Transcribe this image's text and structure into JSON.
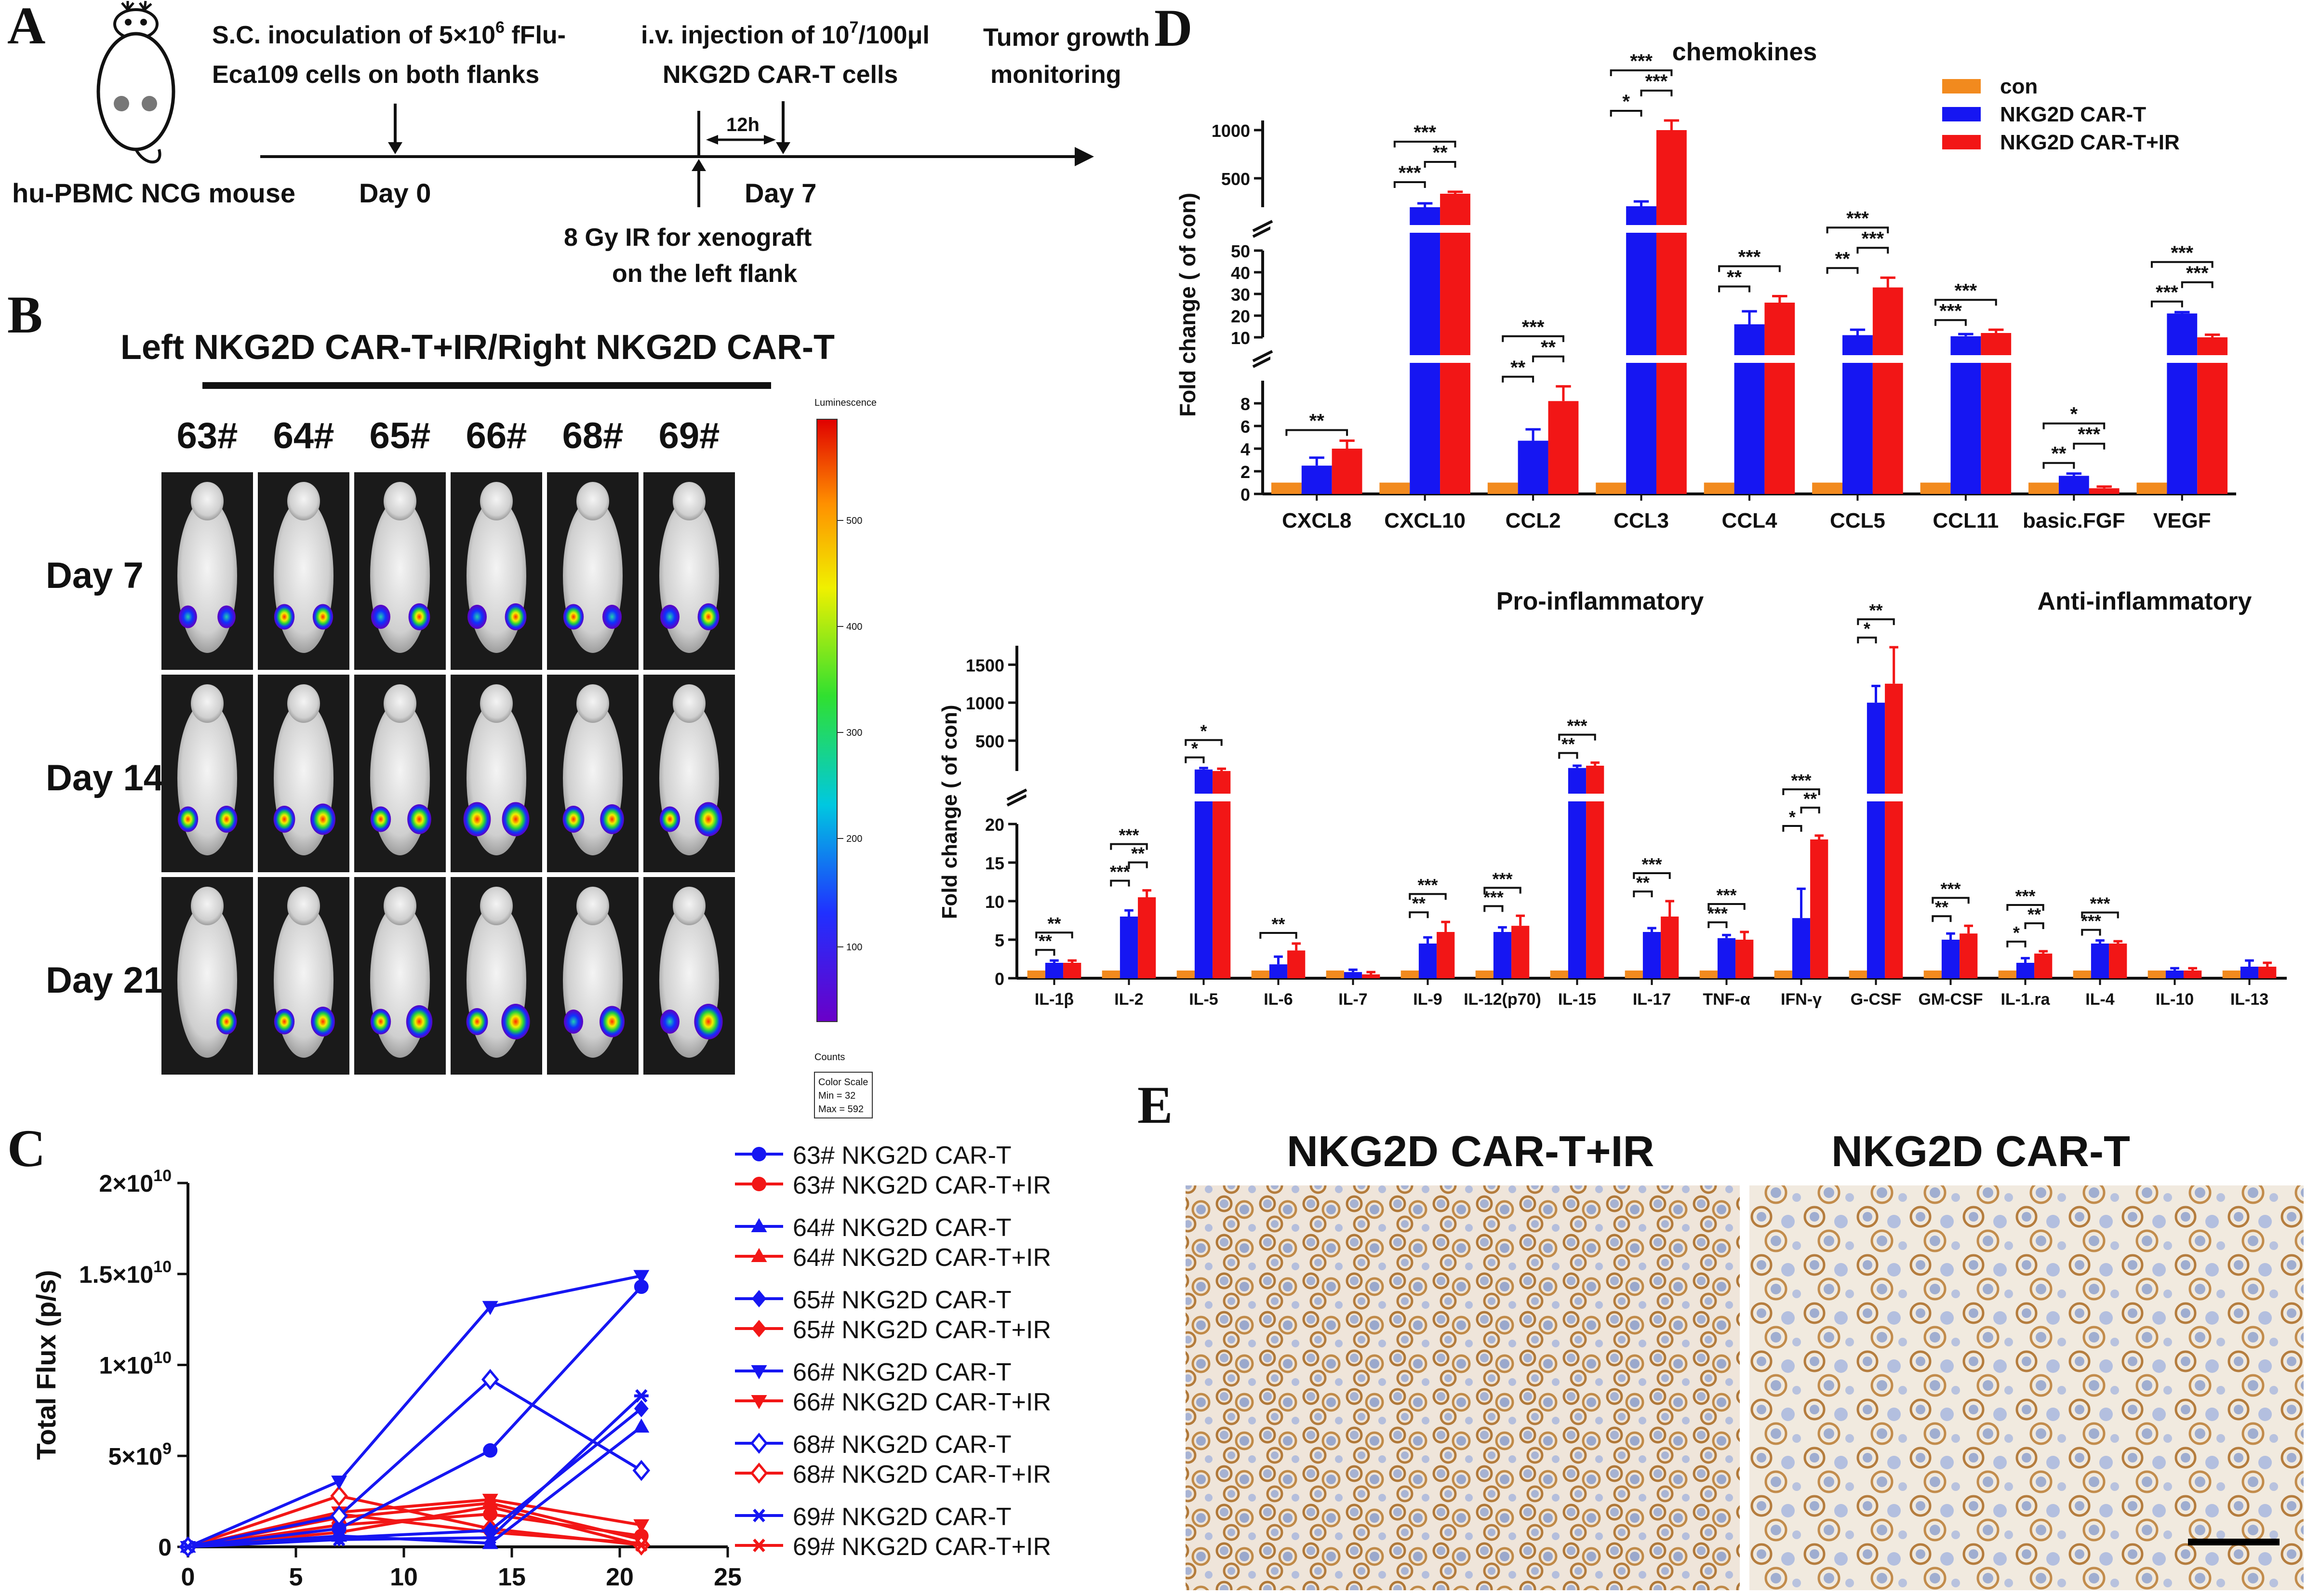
{
  "colors": {
    "con": "#F28A1E",
    "car": "#1616F2",
    "carir": "#F21616",
    "black": "#111111"
  },
  "panelA": {
    "letter": "A",
    "mouse": "hu-PBMC NCG mouse",
    "step1_line1": "S.C. inoculation of 5×10",
    "step1_sup": "6",
    "step1_line1_end": " fFlu-",
    "step1_line2": "Eca109 cells on both flanks",
    "step2_line1": "i.v. injection of 10",
    "step2_sup": "7",
    "step2_line1_end": "/100μl",
    "step2_line2": "NKG2D CAR-T cells",
    "step3_line1": "Tumor growth",
    "step3_line2": "monitoring",
    "day0": "Day 0",
    "day7": "Day 7",
    "interval": "12h",
    "ir_line1": "8 Gy IR for xenograft",
    "ir_line2": "on the left flank"
  },
  "panelB": {
    "letter": "B",
    "title": "Left NKG2D CAR-T+IR/Right NKG2D CAR-T",
    "mice": [
      "63#",
      "64#",
      "65#",
      "66#",
      "68#",
      "69#"
    ],
    "days": [
      "Day 7",
      "Day 14",
      "Day 21"
    ],
    "colorbar_title": "Luminescence",
    "colorbar_ticks": [
      "500",
      "400",
      "300",
      "200",
      "100"
    ],
    "colorbar_units": "Counts",
    "color_scale": [
      "Color Scale",
      "Min = 32",
      "Max = 592"
    ]
  },
  "panelE": {
    "letter": "E",
    "label_left": "NKG2D CAR-T+IR",
    "label_right": "NKG2D CAR-T"
  },
  "chart_data": [
    {
      "id": "C",
      "letter": "C",
      "type": "line",
      "ylabel": "Total Flux (p/s)",
      "xlim": [
        0,
        25
      ],
      "ylim": [
        0,
        20000000000.0
      ],
      "x_ticks": [
        "0",
        "5",
        "10",
        "15",
        "20",
        "25"
      ],
      "y_ticks": [
        {
          "base": "0",
          "exp": ""
        },
        {
          "base": "5×10",
          "exp": "9"
        },
        {
          "base": "1×10",
          "exp": "10"
        },
        {
          "base": "1.5×10",
          "exp": "10"
        },
        {
          "base": "2×10",
          "exp": "10"
        }
      ],
      "x": [
        0,
        7,
        14,
        21
      ],
      "series": [
        {
          "name": "63# NKG2D CAR-T",
          "group": "car",
          "marker": "circle",
          "values": [
            0,
            1000000000.0,
            5300000000.0,
            14300000000.0
          ]
        },
        {
          "name": "63# NKG2D CAR-T+IR",
          "group": "carir",
          "marker": "circle",
          "values": [
            0,
            1200000000.0,
            1800000000.0,
            600000000.0
          ]
        },
        {
          "name": "64# NKG2D CAR-T",
          "group": "car",
          "marker": "triangle-up",
          "values": [
            0,
            600000000.0,
            200000000.0,
            6600000000.0
          ]
        },
        {
          "name": "64# NKG2D CAR-T+IR",
          "group": "carir",
          "marker": "triangle-up",
          "values": [
            0,
            1600000000.0,
            2400000000.0,
            400000000.0
          ]
        },
        {
          "name": "65# NKG2D CAR-T",
          "group": "car",
          "marker": "diamond",
          "values": [
            0,
            500000000.0,
            900000000.0,
            7600000000.0
          ]
        },
        {
          "name": "65# NKG2D CAR-T+IR",
          "group": "carir",
          "marker": "diamond",
          "values": [
            0,
            1800000000.0,
            800000000.0,
            200000000.0
          ]
        },
        {
          "name": "66# NKG2D CAR-T",
          "group": "car",
          "marker": "triangle-down",
          "values": [
            0,
            3600000000.0,
            13200000000.0,
            14900000000.0
          ]
        },
        {
          "name": "66# NKG2D CAR-T+IR",
          "group": "carir",
          "marker": "triangle-down",
          "values": [
            0,
            1900000000.0,
            2600000000.0,
            1200000000.0
          ]
        },
        {
          "name": "68# NKG2D CAR-T",
          "group": "car",
          "marker": "diamond-open",
          "values": [
            0,
            1700000000.0,
            9200000000.0,
            4200000000.0
          ]
        },
        {
          "name": "68# NKG2D CAR-T+IR",
          "group": "carir",
          "marker": "diamond-open",
          "values": [
            0,
            2800000000.0,
            1000000000.0,
            100000000.0
          ]
        },
        {
          "name": "69# NKG2D CAR-T",
          "group": "car",
          "marker": "star",
          "values": [
            0,
            400000000.0,
            500000000.0,
            8300000000.0
          ]
        },
        {
          "name": "69# NKG2D CAR-T+IR",
          "group": "carir",
          "marker": "star",
          "values": [
            0,
            800000000.0,
            2200000000.0,
            100000000.0
          ]
        }
      ]
    },
    {
      "id": "D1",
      "letter": "D",
      "type": "bar",
      "title": "chemokines",
      "ylabel": "Fold change ( of con)",
      "legend": [
        "con",
        "NKG2D CAR-T",
        "NKG2D CAR-T+IR"
      ],
      "categories": [
        "CXCL8",
        "CXCL10",
        "CCL2",
        "CCL3",
        "CCL4",
        "CCL5",
        "CCL11",
        "basic.FGF",
        "VEGF"
      ],
      "series": [
        {
          "name": "con",
          "values": [
            1,
            1,
            1,
            1,
            1,
            1,
            1,
            1,
            1
          ]
        },
        {
          "name": "NKG2D CAR-T",
          "values": [
            2.5,
            200,
            4.7,
            210,
            16,
            11,
            10.5,
            1.6,
            21
          ]
        },
        {
          "name": "NKG2D CAR-T+IR",
          "values": [
            4.0,
            340,
            8.2,
            1000,
            26,
            33,
            12,
            0.5,
            10
          ]
        }
      ],
      "errors": [
        {
          "name": "NKG2D CAR-T",
          "values": [
            0.7,
            40,
            1.0,
            50,
            6,
            2.5,
            1.0,
            0.2,
            0.6
          ]
        },
        {
          "name": "NKG2D CAR-T+IR",
          "values": [
            0.7,
            20,
            1.3,
            130,
            3,
            4.5,
            1.5,
            0.15,
            1.2
          ]
        }
      ],
      "segments": [
        {
          "range": [
            0,
            10
          ],
          "ticks": [
            0,
            2,
            4,
            6,
            8,
            10
          ]
        },
        {
          "range": [
            10,
            50
          ],
          "ticks": [
            10,
            20,
            30,
            40,
            50
          ]
        },
        {
          "range": [
            200,
            1100
          ],
          "ticks": [
            500,
            1000
          ]
        }
      ],
      "significance": [
        {
          "cat": 0,
          "pair": "con-carir",
          "label": "**"
        },
        {
          "cat": 1,
          "pair": "con-car",
          "label": "***"
        },
        {
          "cat": 1,
          "pair": "car-carir",
          "label": "**"
        },
        {
          "cat": 1,
          "pair": "con-carir",
          "label": "***"
        },
        {
          "cat": 2,
          "pair": "con-car",
          "label": "**"
        },
        {
          "cat": 2,
          "pair": "car-carir",
          "label": "**"
        },
        {
          "cat": 2,
          "pair": "con-carir",
          "label": "***"
        },
        {
          "cat": 3,
          "pair": "con-car",
          "label": "*"
        },
        {
          "cat": 3,
          "pair": "car-carir",
          "label": "***"
        },
        {
          "cat": 3,
          "pair": "con-carir",
          "label": "***"
        },
        {
          "cat": 4,
          "pair": "con-car",
          "label": "**"
        },
        {
          "cat": 4,
          "pair": "con-carir",
          "label": "***"
        },
        {
          "cat": 5,
          "pair": "con-car",
          "label": "**"
        },
        {
          "cat": 5,
          "pair": "car-carir",
          "label": "***"
        },
        {
          "cat": 5,
          "pair": "con-carir",
          "label": "***"
        },
        {
          "cat": 6,
          "pair": "con-car",
          "label": "***"
        },
        {
          "cat": 6,
          "pair": "con-carir",
          "label": "***"
        },
        {
          "cat": 7,
          "pair": "con-car",
          "label": "**"
        },
        {
          "cat": 7,
          "pair": "car-carir",
          "label": "***"
        },
        {
          "cat": 7,
          "pair": "con-carir",
          "label": "*"
        },
        {
          "cat": 8,
          "pair": "con-car",
          "label": "***"
        },
        {
          "cat": 8,
          "pair": "car-carir",
          "label": "***"
        },
        {
          "cat": 8,
          "pair": "con-carir",
          "label": "***"
        }
      ]
    },
    {
      "id": "D2",
      "type": "bar",
      "title_left": "Pro-inflammatory",
      "title_right": "Anti-inflammatory",
      "ylabel": "Fold change ( of con)",
      "categories": [
        "IL-1β",
        "IL-2",
        "IL-5",
        "IL-6",
        "IL-7",
        "IL-9",
        "IL-12(p70)",
        "IL-15",
        "IL-17",
        "TNF-α",
        "IFN-γ",
        "G-CSF",
        "GM-CSF",
        "IL-1.ra",
        "IL-4",
        "IL-10",
        "IL-13"
      ],
      "series": [
        {
          "name": "con",
          "values": [
            1,
            1,
            1,
            1,
            1,
            1,
            1,
            1,
            1,
            1,
            1,
            1,
            1,
            1,
            1,
            1,
            1
          ]
        },
        {
          "name": "NKG2D CAR-T",
          "values": [
            2.0,
            8.0,
            120,
            1.8,
            0.8,
            4.5,
            6.0,
            140,
            6.0,
            5.2,
            7.8,
            1000,
            5.0,
            2.0,
            4.5,
            1.0,
            1.5
          ]
        },
        {
          "name": "NKG2D CAR-T+IR",
          "values": [
            2.0,
            10.5,
            100,
            3.6,
            0.5,
            6.0,
            6.8,
            170,
            8.0,
            5.0,
            18.0,
            1250,
            5.8,
            3.2,
            4.5,
            1.0,
            1.5
          ]
        }
      ],
      "errors": [
        {
          "name": "NKG2D CAR-T",
          "values": [
            0.3,
            0.8,
            20,
            1.0,
            0.3,
            0.8,
            0.6,
            30,
            0.5,
            0.4,
            3.8,
            220,
            0.8,
            0.6,
            0.4,
            0.3,
            0.8
          ]
        },
        {
          "name": "NKG2D CAR-T+IR",
          "values": [
            0.3,
            0.9,
            30,
            0.9,
            0.3,
            1.3,
            1.3,
            40,
            2.0,
            1.0,
            0.5,
            480,
            1.0,
            0.3,
            0.3,
            0.3,
            0.5
          ]
        }
      ],
      "segments": [
        {
          "range": [
            0,
            20
          ],
          "ticks": [
            0,
            5,
            10,
            15,
            20
          ]
        },
        {
          "range": [
            100,
            1750
          ],
          "ticks": [
            500,
            1000,
            1500
          ]
        }
      ],
      "significance": [
        {
          "cat": 0,
          "pair": "con-car",
          "label": "**"
        },
        {
          "cat": 0,
          "pair": "con-carir",
          "label": "**"
        },
        {
          "cat": 1,
          "pair": "con-car",
          "label": "***"
        },
        {
          "cat": 1,
          "pair": "car-carir",
          "label": "**"
        },
        {
          "cat": 1,
          "pair": "con-carir",
          "label": "***"
        },
        {
          "cat": 2,
          "pair": "con-car",
          "label": "*"
        },
        {
          "cat": 2,
          "pair": "con-carir",
          "label": "*"
        },
        {
          "cat": 3,
          "pair": "con-carir",
          "label": "**"
        },
        {
          "cat": 5,
          "pair": "con-car",
          "label": "**"
        },
        {
          "cat": 5,
          "pair": "con-carir",
          "label": "***"
        },
        {
          "cat": 6,
          "pair": "con-car",
          "label": "***"
        },
        {
          "cat": 6,
          "pair": "con-carir",
          "label": "***"
        },
        {
          "cat": 7,
          "pair": "con-car",
          "label": "**"
        },
        {
          "cat": 7,
          "pair": "con-carir",
          "label": "***"
        },
        {
          "cat": 8,
          "pair": "con-car",
          "label": "**"
        },
        {
          "cat": 8,
          "pair": "con-carir",
          "label": "***"
        },
        {
          "cat": 9,
          "pair": "con-car",
          "label": "***"
        },
        {
          "cat": 9,
          "pair": "con-carir",
          "label": "***"
        },
        {
          "cat": 10,
          "pair": "con-car",
          "label": "*"
        },
        {
          "cat": 10,
          "pair": "car-carir",
          "label": "**"
        },
        {
          "cat": 10,
          "pair": "con-carir",
          "label": "***"
        },
        {
          "cat": 11,
          "pair": "con-car",
          "label": "*"
        },
        {
          "cat": 11,
          "pair": "con-carir",
          "label": "**"
        },
        {
          "cat": 12,
          "pair": "con-car",
          "label": "**"
        },
        {
          "cat": 12,
          "pair": "con-carir",
          "label": "***"
        },
        {
          "cat": 13,
          "pair": "con-car",
          "label": "*"
        },
        {
          "cat": 13,
          "pair": "car-carir",
          "label": "**"
        },
        {
          "cat": 13,
          "pair": "con-carir",
          "label": "***"
        },
        {
          "cat": 14,
          "pair": "con-car",
          "label": "***"
        },
        {
          "cat": 14,
          "pair": "con-carir",
          "label": "***"
        }
      ]
    }
  ]
}
